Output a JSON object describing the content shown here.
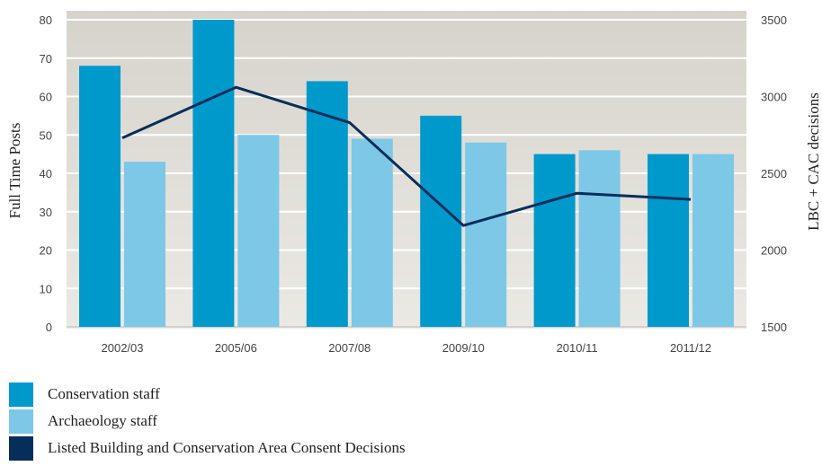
{
  "chart_data": {
    "type": "bar",
    "categories": [
      "2002/03",
      "2005/06",
      "2007/08",
      "2009/10",
      "2010/11",
      "2011/12"
    ],
    "series": [
      {
        "name": "Conservation staff",
        "kind": "bar",
        "axis": "left",
        "color": "#0099cc",
        "values": [
          68,
          80,
          64,
          55,
          45,
          45
        ]
      },
      {
        "name": "Archaeology staff",
        "kind": "bar",
        "axis": "left",
        "color": "#7cc8e6",
        "values": [
          43,
          50,
          49,
          48,
          46,
          45
        ]
      },
      {
        "name": "Listed Building and Conservation Area Consent Decisions",
        "kind": "line",
        "axis": "right",
        "color": "#062e5a",
        "values": [
          2730,
          3060,
          2830,
          2160,
          2370,
          2330
        ]
      }
    ],
    "ylabel": "Full Time Posts",
    "y2label": "LBC + CAC decisions",
    "ylim": [
      0,
      80
    ],
    "y2lim": [
      1500,
      3500
    ],
    "yticks": [
      0,
      10,
      20,
      30,
      40,
      50,
      60,
      70,
      80
    ],
    "y2ticks": [
      1500,
      2000,
      2500,
      3000,
      3500
    ],
    "grid": true,
    "legend_position": "bottom-left"
  }
}
